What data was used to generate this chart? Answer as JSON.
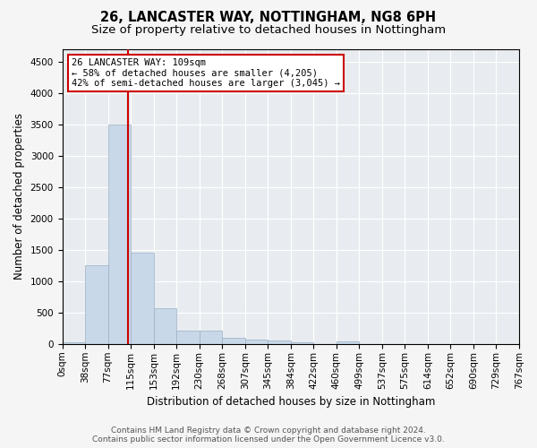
{
  "title1": "26, LANCASTER WAY, NOTTINGHAM, NG8 6PH",
  "title2": "Size of property relative to detached houses in Nottingham",
  "xlabel": "Distribution of detached houses by size in Nottingham",
  "ylabel": "Number of detached properties",
  "bin_labels": [
    "0sqm",
    "38sqm",
    "77sqm",
    "115sqm",
    "153sqm",
    "192sqm",
    "230sqm",
    "268sqm",
    "307sqm",
    "345sqm",
    "384sqm",
    "422sqm",
    "460sqm",
    "499sqm",
    "537sqm",
    "575sqm",
    "614sqm",
    "652sqm",
    "690sqm",
    "729sqm",
    "767sqm"
  ],
  "bar_heights": [
    25,
    1250,
    3500,
    1450,
    575,
    220,
    210,
    100,
    75,
    50,
    30,
    0,
    35,
    0,
    0,
    0,
    0,
    0,
    0,
    0
  ],
  "bar_color": "#c8d8e8",
  "bar_edge_color": "#9ab0c4",
  "vline_color": "#cc0000",
  "vline_x_bin": 2.87,
  "ylim_max": 4700,
  "yticks": [
    0,
    500,
    1000,
    1500,
    2000,
    2500,
    3000,
    3500,
    4000,
    4500
  ],
  "annotation_title": "26 LANCASTER WAY: 109sqm",
  "annotation_line1": "← 58% of detached houses are smaller (4,205)",
  "annotation_line2": "42% of semi-detached houses are larger (3,045) →",
  "annotation_box_color": "#ffffff",
  "annotation_box_edge": "#cc0000",
  "footer1": "Contains HM Land Registry data © Crown copyright and database right 2024.",
  "footer2": "Contains public sector information licensed under the Open Government Licence v3.0.",
  "plot_bg_color": "#e8ecf0",
  "fig_bg_color": "#f5f5f5",
  "grid_color": "#ffffff",
  "title1_fontsize": 10.5,
  "title2_fontsize": 9.5,
  "xlabel_fontsize": 8.5,
  "ylabel_fontsize": 8.5,
  "tick_fontsize": 7.5,
  "footer_fontsize": 6.5
}
